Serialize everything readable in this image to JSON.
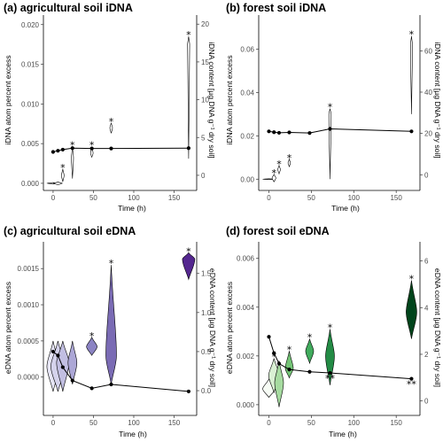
{
  "chart_data": [
    {
      "type": "line",
      "title": "(a) agricultural soil iDNA",
      "xlabel": "Time (h)",
      "ylabel": "iDNA atom percent excess",
      "y2label": "iDNA content [µg DNA g⁻¹ dry soil]",
      "xlim": [
        -12,
        178
      ],
      "ylim": [
        -0.0009,
        0.0212
      ],
      "y2lim": [
        -2.0,
        21.2
      ],
      "xticks": [
        0,
        50,
        100,
        150
      ],
      "yticks": [
        0.0,
        0.005,
        0.01,
        0.015,
        0.02
      ],
      "ytick_labels": [
        "0.000",
        "0.005",
        "0.010",
        "0.015",
        "0.020"
      ],
      "y2ticks": [
        0,
        5,
        10,
        15,
        20
      ],
      "y2tick_labels": [
        "0",
        "5",
        "10",
        "15",
        "20"
      ],
      "series": [
        {
          "name": "",
          "kind": "line-right-axis",
          "x": [
            0,
            6,
            12,
            24,
            48,
            72,
            168
          ],
          "values": [
            3.1,
            3.25,
            3.4,
            3.6,
            3.55,
            3.55,
            3.6
          ]
        }
      ],
      "violins": [
        {
          "x": 0,
          "center": 0.0,
          "min": -0.0001,
          "max": 0.0001,
          "width": 7,
          "color": "#ffffff",
          "star": false
        },
        {
          "x": 6,
          "center": 0.0,
          "min": -0.0002,
          "max": 0.00015,
          "width": 5,
          "color": "#ffffff",
          "star": false
        },
        {
          "x": 12,
          "center": 0.001,
          "min": 0.0002,
          "max": 0.0018,
          "width": 1.5,
          "color": "#ffffff",
          "star": true
        },
        {
          "x": 24,
          "center": 0.0032,
          "min": 0.0006,
          "max": 0.0046,
          "width": 1.2,
          "color": "#ffffff",
          "star": true
        },
        {
          "x": 48,
          "center": 0.0038,
          "min": 0.0033,
          "max": 0.0046,
          "width": 1.5,
          "color": "#ffffff",
          "star": true
        },
        {
          "x": 72,
          "center": 0.007,
          "min": 0.0063,
          "max": 0.0076,
          "width": 1.5,
          "color": "#ffffff",
          "star": true
        },
        {
          "x": 168,
          "center": 0.0175,
          "min": 0.0031,
          "max": 0.0185,
          "width": 1.2,
          "color": "#ffffff",
          "star": true
        }
      ],
      "dot_stars": []
    },
    {
      "type": "line",
      "title": "(b) forest soil iDNA",
      "xlabel": "Time (h)",
      "ylabel": "iDNA atom percent excess",
      "y2label": "iDNA content [µg DNA g⁻¹ dry soil]",
      "xlim": [
        -12,
        178
      ],
      "ylim": [
        -0.0052,
        0.0757
      ],
      "y2lim": [
        -7.6,
        77.3
      ],
      "xticks": [
        0,
        50,
        100,
        150
      ],
      "yticks": [
        0.0,
        0.02,
        0.04,
        0.06
      ],
      "ytick_labels": [
        "0.00",
        "0.02",
        "0.04",
        "0.06"
      ],
      "y2ticks": [
        0,
        20,
        40,
        60
      ],
      "y2tick_labels": [
        "0",
        "20",
        "40",
        "60"
      ],
      "series": [
        {
          "name": "",
          "kind": "line-right-axis",
          "x": [
            0,
            6,
            12,
            24,
            48,
            72,
            168
          ],
          "values": [
            21.0,
            20.6,
            20.3,
            20.5,
            20.2,
            22.2,
            21.0
          ]
        }
      ],
      "violins": [
        {
          "x": 0,
          "center": 0.0,
          "min": -0.0002,
          "max": 0.0002,
          "width": 7,
          "color": "#ffffff",
          "star": false
        },
        {
          "x": 6,
          "center": 0.0005,
          "min": -0.0012,
          "max": 0.0022,
          "width": 2.2,
          "color": "#ffffff",
          "star": true
        },
        {
          "x": 12,
          "center": 0.0045,
          "min": 0.0025,
          "max": 0.0063,
          "width": 1.5,
          "color": "#ffffff",
          "star": true
        },
        {
          "x": 24,
          "center": 0.0075,
          "min": 0.0058,
          "max": 0.0092,
          "width": 1.4,
          "color": "#ffffff",
          "star": true
        },
        {
          "x": 72,
          "center": 0.03,
          "min": 0.0,
          "max": 0.0325,
          "width": 1.3,
          "color": "#ffffff",
          "star": true
        },
        {
          "x": 168,
          "center": 0.062,
          "min": 0.03,
          "max": 0.066,
          "width": 1.1,
          "color": "#ffffff",
          "star": true
        }
      ],
      "dot_stars": []
    },
    {
      "type": "line",
      "title": "(c) agricultural soil eDNA",
      "xlabel": "Time (h)",
      "ylabel": "eDNA atom percent excess",
      "y2label": "eDNA content [µg DNA g⁻¹ dry soil]",
      "xlim": [
        -12,
        178
      ],
      "ylim": [
        -0.00053,
        0.00187
      ],
      "y2lim": [
        -0.317,
        1.905
      ],
      "xticks": [
        0,
        50,
        100,
        150
      ],
      "yticks": [
        0.0,
        0.0005,
        0.001,
        0.0015
      ],
      "ytick_labels": [
        "0.0000",
        "0.0005",
        "0.0010",
        "0.0015"
      ],
      "y2ticks": [
        0.0,
        0.5,
        1.0,
        1.5
      ],
      "y2tick_labels": [
        "0.0",
        "0.5",
        "1.0",
        "1.5"
      ],
      "series": [
        {
          "name": "",
          "kind": "line-right-axis",
          "x": [
            0,
            6,
            12,
            24,
            48,
            72,
            168
          ],
          "values": [
            0.5,
            0.45,
            0.3,
            0.13,
            0.03,
            0.08,
            -0.01
          ]
        }
      ],
      "violins": [
        {
          "x": 0,
          "center": 0.00015,
          "min": -0.0002,
          "max": 0.0005,
          "width": 7,
          "color": "#e6e5f5",
          "star": false
        },
        {
          "x": 6,
          "center": 0.00015,
          "min": -0.0002,
          "max": 0.0005,
          "width": 8,
          "color": "#d5d3ec",
          "star": false
        },
        {
          "x": 12,
          "center": 0.0002,
          "min": -0.0002,
          "max": 0.0005,
          "width": 7,
          "color": "#c2bfe2",
          "star": false
        },
        {
          "x": 24,
          "center": 0.0002,
          "min": -0.0001,
          "max": 0.0005,
          "width": 5,
          "color": "#aca7d6",
          "star": false
        },
        {
          "x": 48,
          "center": 0.00042,
          "min": 0.0003,
          "max": 0.00055,
          "width": 6,
          "color": "#8b83c3",
          "star": true
        },
        {
          "x": 72,
          "center": 0.0003,
          "min": -0.0001,
          "max": 0.00155,
          "width": 6,
          "color": "#7a6bb4",
          "star": true
        },
        {
          "x": 168,
          "center": 0.00163,
          "min": 0.00135,
          "max": 0.00172,
          "width": 7,
          "color": "#54278f",
          "star": true
        }
      ],
      "dot_stars": []
    },
    {
      "type": "line",
      "title": "(d) forest soil eDNA",
      "xlabel": "Time (h)",
      "ylabel": "eDNA atom percent excess",
      "y2label": "eDNA content [µg DNA g⁻¹ dry soil]",
      "xlim": [
        -12,
        178
      ],
      "ylim": [
        -0.00044,
        0.00668
      ],
      "y2lim": [
        -0.62,
        6.82
      ],
      "xticks": [
        0,
        50,
        100,
        150
      ],
      "yticks": [
        0.0,
        0.002,
        0.004,
        0.006
      ],
      "ytick_labels": [
        "0.000",
        "0.002",
        "0.004",
        "0.006"
      ],
      "y2ticks": [
        0,
        2,
        4,
        6
      ],
      "y2tick_labels": [
        "0",
        "2",
        "4",
        "6"
      ],
      "series": [
        {
          "name": "",
          "kind": "line-right-axis",
          "x": [
            0,
            6,
            12,
            24,
            48,
            72,
            168
          ],
          "values": [
            2.75,
            2.05,
            1.6,
            1.35,
            1.25,
            1.2,
            0.95
          ]
        }
      ],
      "violins": [
        {
          "x": 0,
          "center": 0.00065,
          "min": 0.0003,
          "max": 0.00105,
          "width": 7,
          "color": "#f7fcf5",
          "star": false
        },
        {
          "x": 6,
          "center": 0.0012,
          "min": 0.0005,
          "max": 0.0019,
          "width": 6,
          "color": "#d9f0d3",
          "star": true
        },
        {
          "x": 12,
          "center": 0.0009,
          "min": -0.0001,
          "max": 0.0018,
          "width": 5,
          "color": "#a6dba0",
          "star": false
        },
        {
          "x": 24,
          "center": 0.0015,
          "min": 0.0011,
          "max": 0.0022,
          "width": 4.5,
          "color": "#74c476",
          "star": true
        },
        {
          "x": 48,
          "center": 0.0022,
          "min": 0.0017,
          "max": 0.0027,
          "width": 4.5,
          "color": "#41ab5d",
          "star": true
        },
        {
          "x": 72,
          "center": 0.002,
          "min": 0.0008,
          "max": 0.0031,
          "width": 5,
          "color": "#238b45",
          "star": true
        },
        {
          "x": 168,
          "center": 0.0038,
          "min": 0.0027,
          "max": 0.0051,
          "width": 6,
          "color": "#00441b",
          "star": true
        }
      ],
      "dot_stars": [
        {
          "x": 72,
          "label": "**"
        },
        {
          "x": 168,
          "label": "**"
        }
      ]
    }
  ]
}
